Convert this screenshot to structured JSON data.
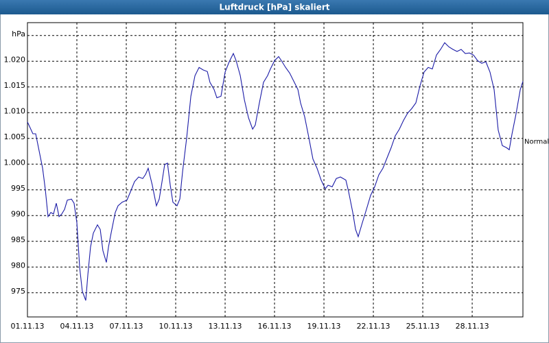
{
  "chart_data": {
    "type": "line",
    "title": "Luftdruck [hPa] skaliert",
    "color": "#1a1aa6",
    "grid": true,
    "xlim": [
      0,
      30.08
    ],
    "ylim": [
      970.3,
      1027.5
    ],
    "xticks": [
      {
        "value": 0,
        "label": "01.11.13"
      },
      {
        "value": 3,
        "label": "04.11.13"
      },
      {
        "value": 6,
        "label": "07.11.13"
      },
      {
        "value": 9,
        "label": "10.11.13"
      },
      {
        "value": 12,
        "label": "13.11.13"
      },
      {
        "value": 15,
        "label": "16.11.13"
      },
      {
        "value": 18,
        "label": "19.11.13"
      },
      {
        "value": 21,
        "label": "22.11.13"
      },
      {
        "value": 24,
        "label": "25.11.13"
      },
      {
        "value": 27,
        "label": "28.11.13"
      }
    ],
    "yticks": [
      975,
      980,
      985,
      990,
      995,
      {
        "value": 1000,
        "label": "1.000"
      },
      {
        "value": 1005,
        "label": "1.005"
      },
      {
        "value": 1010,
        "label": "1.010"
      },
      {
        "value": 1015,
        "label": "1.015"
      },
      {
        "value": 1020,
        "label": "1.020"
      },
      {
        "value": 1025,
        "label": "hPa"
      }
    ],
    "annotations": [
      {
        "text": "Normal",
        "y": 1004.4
      }
    ],
    "x": [
      0,
      0.33,
      0.5,
      0.67,
      0.92,
      1.08,
      1.25,
      1.42,
      1.58,
      1.75,
      1.92,
      2.08,
      2.25,
      2.42,
      2.67,
      2.83,
      3,
      3.17,
      3.33,
      3.54,
      3.67,
      3.83,
      4,
      4.25,
      4.42,
      4.58,
      4.79,
      4.92,
      5.08,
      5.33,
      5.5,
      5.75,
      6.04,
      6.25,
      6.5,
      6.75,
      7,
      7.17,
      7.33,
      7.58,
      7.83,
      8,
      8.17,
      8.33,
      8.5,
      8.67,
      8.83,
      9.08,
      9.25,
      9.42,
      9.67,
      9.92,
      10.17,
      10.42,
      10.67,
      10.92,
      11.08,
      11.33,
      11.5,
      11.75,
      12,
      12.25,
      12.5,
      12.67,
      12.92,
      13.17,
      13.42,
      13.67,
      13.83,
      14.08,
      14.33,
      14.58,
      14.75,
      15,
      15.25,
      15.42,
      15.67,
      15.92,
      16.17,
      16.42,
      16.58,
      16.83,
      17.08,
      17.33,
      17.58,
      17.83,
      18.08,
      18.25,
      18.5,
      18.75,
      19,
      19.33,
      19.5,
      19.75,
      19.92,
      20.08,
      20.33,
      20.58,
      20.83,
      21.08,
      21.33,
      21.58,
      21.83,
      22.08,
      22.33,
      22.58,
      22.83,
      23.08,
      23.33,
      23.58,
      23.83,
      24.08,
      24.33,
      24.58,
      24.83,
      25.08,
      25.33,
      25.58,
      25.83,
      26.08,
      26.33,
      26.58,
      26.83,
      27.08,
      27.33,
      27.58,
      27.83,
      28.08,
      28.33,
      28.58,
      28.83,
      29.08,
      29.25,
      29.42,
      29.67,
      29.92,
      30.08
    ],
    "values": [
      1008.2,
      1005.9,
      1005.9,
      1003.2,
      999.2,
      995.2,
      989.8,
      990.6,
      990.3,
      992.4,
      989.8,
      990.3,
      991.2,
      993.0,
      993.2,
      992.4,
      988.6,
      979.9,
      975.3,
      973.5,
      978.6,
      983.9,
      986.6,
      988.2,
      987.3,
      983.2,
      980.9,
      983.9,
      986.6,
      990.6,
      991.9,
      992.6,
      993.0,
      994.6,
      996.6,
      997.5,
      997.2,
      998.0,
      999.2,
      995.9,
      991.9,
      993.2,
      996.6,
      999.9,
      1000.2,
      995.9,
      992.6,
      991.9,
      993.2,
      998.6,
      1005.2,
      1013.2,
      1017.2,
      1018.8,
      1018.3,
      1018.0,
      1015.9,
      1014.5,
      1012.9,
      1013.2,
      1017.9,
      1019.9,
      1021.5,
      1020.1,
      1017.2,
      1012.5,
      1009.0,
      1006.8,
      1007.6,
      1011.9,
      1015.9,
      1017.2,
      1018.5,
      1020.1,
      1020.9,
      1020.1,
      1018.8,
      1017.7,
      1016.1,
      1014.5,
      1011.9,
      1009.2,
      1005.2,
      1001.0,
      999.2,
      996.9,
      995.2,
      995.9,
      995.6,
      997.2,
      997.5,
      996.9,
      994.6,
      990.6,
      987.3,
      985.9,
      988.6,
      991.2,
      993.9,
      995.6,
      997.9,
      999.2,
      1001.2,
      1003.2,
      1005.5,
      1006.8,
      1008.5,
      1009.9,
      1010.8,
      1011.9,
      1015.2,
      1017.9,
      1018.8,
      1018.5,
      1021.2,
      1022.3,
      1023.6,
      1022.8,
      1022.3,
      1021.9,
      1022.3,
      1021.5,
      1021.6,
      1021.2,
      1020.1,
      1019.6,
      1019.9,
      1017.9,
      1014.5,
      1006.6,
      1003.6,
      1003.2,
      1002.8,
      1005.9,
      1009.9,
      1014.5,
      1016.1
    ]
  }
}
